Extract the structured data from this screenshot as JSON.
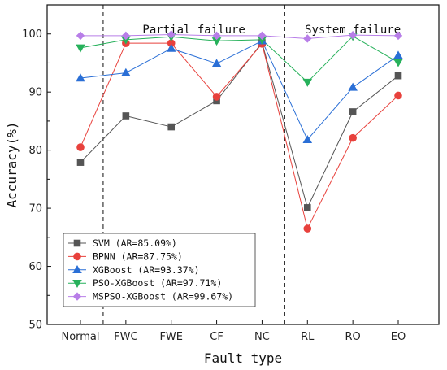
{
  "chart_data": {
    "type": "line",
    "categories": [
      "Normal",
      "FWC",
      "FWE",
      "CF",
      "NC",
      "RL",
      "RO",
      "EO"
    ],
    "xlabel": "Fault type",
    "ylabel": "Accuracy(%)",
    "ylim": [
      50,
      105
    ],
    "yticks": [
      50,
      60,
      70,
      80,
      90,
      100
    ],
    "grid": false,
    "legend_position": "bottom-left",
    "regions": [
      {
        "label": "Partial failure",
        "from": "FWC",
        "to": "NC"
      },
      {
        "label": "System failure",
        "from": "RL",
        "to": "EO"
      }
    ],
    "dividers_between": [
      [
        "Normal",
        "FWC"
      ],
      [
        "NC",
        "RL"
      ]
    ],
    "series": [
      {
        "name": "SVM (AR=85.09%)",
        "color": "#555555",
        "marker": "square",
        "values": [
          77.9,
          85.9,
          84.0,
          88.5,
          98.5,
          70.1,
          86.6,
          92.8
        ]
      },
      {
        "name": "BPNN (AR=87.75%)",
        "color": "#e8413c",
        "marker": "circle",
        "values": [
          80.5,
          98.4,
          98.4,
          89.2,
          98.3,
          66.5,
          82.1,
          89.4
        ]
      },
      {
        "name": "XGBoost (AR=93.37%)",
        "color": "#2a6fd6",
        "marker": "triangle-up",
        "values": [
          92.4,
          93.3,
          97.5,
          94.9,
          98.8,
          81.8,
          90.8,
          96.3
        ]
      },
      {
        "name": "PSO-XGBoost (AR=97.71%)",
        "color": "#27b15b",
        "marker": "triangle-down",
        "values": [
          97.6,
          99.0,
          99.5,
          98.8,
          99.0,
          91.7,
          99.6,
          95.1
        ]
      },
      {
        "name": "MSPSO-XGBoost (AR=99.67%)",
        "color": "#b87ee8",
        "marker": "diamond",
        "values": [
          99.7,
          99.7,
          99.9,
          99.7,
          99.7,
          99.2,
          99.8,
          99.7
        ]
      }
    ]
  }
}
